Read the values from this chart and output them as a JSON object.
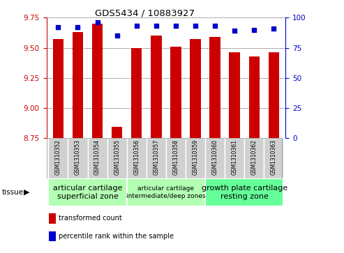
{
  "title": "GDS5434 / 10883927",
  "samples": [
    "GSM1310352",
    "GSM1310353",
    "GSM1310354",
    "GSM1310355",
    "GSM1310356",
    "GSM1310357",
    "GSM1310358",
    "GSM1310359",
    "GSM1310360",
    "GSM1310361",
    "GSM1310362",
    "GSM1310363"
  ],
  "red_values": [
    9.57,
    9.63,
    9.7,
    8.84,
    9.5,
    9.6,
    9.51,
    9.57,
    9.59,
    9.46,
    9.43,
    9.46
  ],
  "blue_values": [
    92,
    92,
    96,
    85,
    93,
    93,
    93,
    93,
    93,
    89,
    90,
    91
  ],
  "ylim": [
    8.75,
    9.75
  ],
  "yticks": [
    8.75,
    9.0,
    9.25,
    9.5,
    9.75
  ],
  "y2lim": [
    0,
    100
  ],
  "y2ticks": [
    0,
    25,
    50,
    75,
    100
  ],
  "left_color": "#cc0000",
  "right_color": "#0000cc",
  "bar_color": "#cc0000",
  "dot_color": "#0000cc",
  "groups": [
    {
      "label": "articular cartilage\nsuperficial zone",
      "start": 0,
      "end": 3,
      "fontsize": 8
    },
    {
      "label": "articular cartilage\nintermediate/deep zones",
      "start": 4,
      "end": 7,
      "fontsize": 6.5
    },
    {
      "label": "growth plate cartilage\nresting zone",
      "start": 8,
      "end": 11,
      "fontsize": 8
    }
  ],
  "group_colors": [
    "#b3ffb3",
    "#b3ffb3",
    "#66ff99"
  ],
  "legend_red": "transformed count",
  "legend_blue": "percentile rank within the sample",
  "tissue_label": "tissue",
  "bar_width": 0.55,
  "tick_label_bg": "#d0d0d0",
  "tick_label_border": "#aaaaaa"
}
